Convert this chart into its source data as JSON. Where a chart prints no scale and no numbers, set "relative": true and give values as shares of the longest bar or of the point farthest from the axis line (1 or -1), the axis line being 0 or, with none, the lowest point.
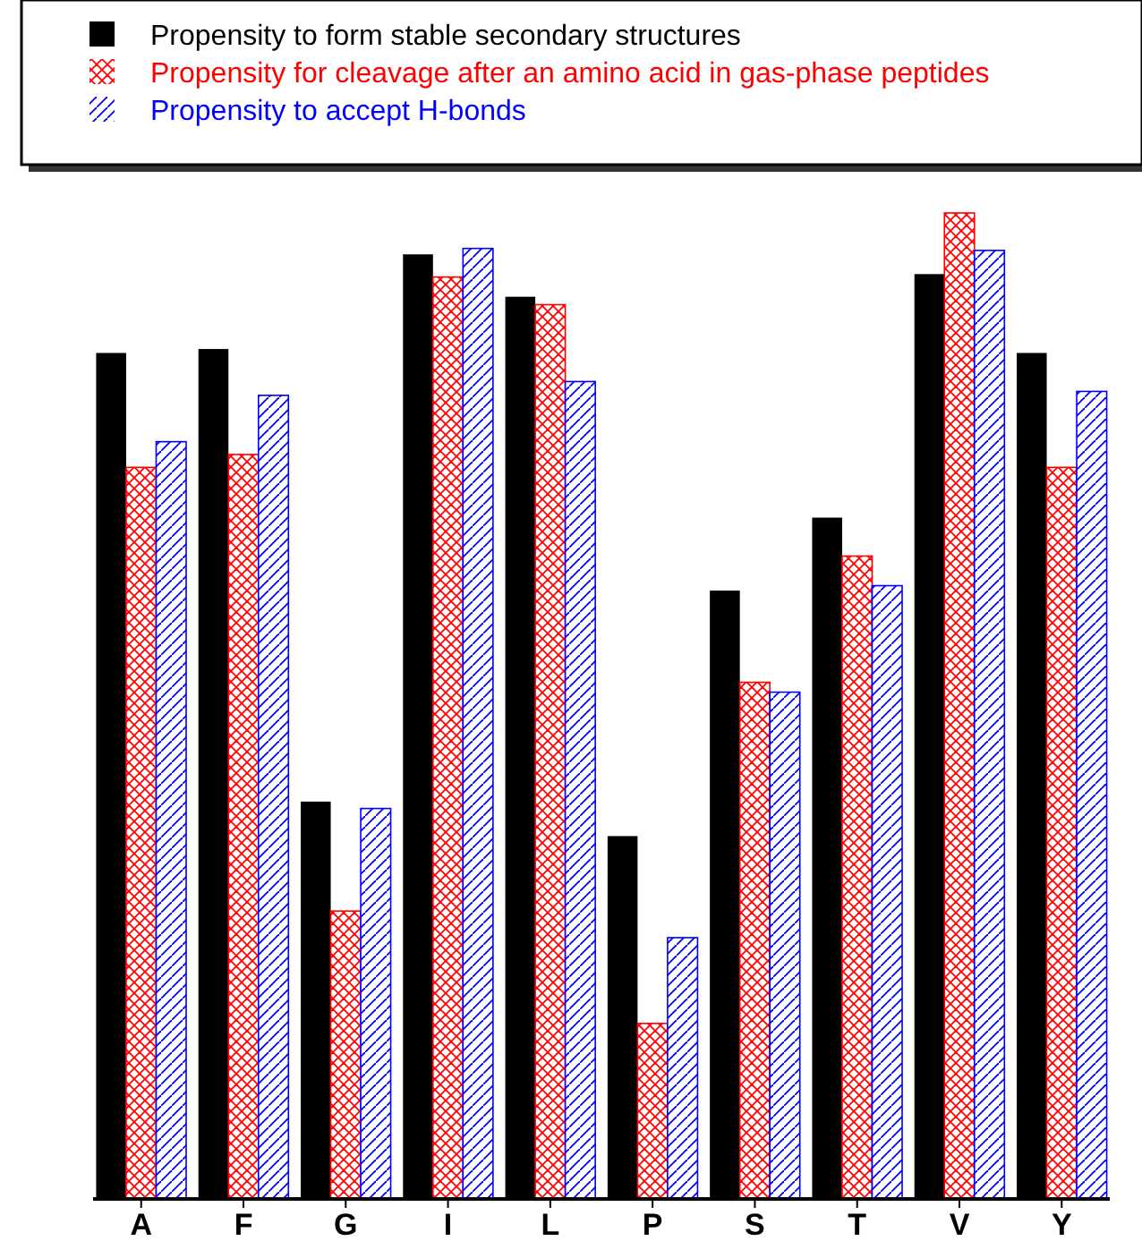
{
  "chart_data": {
    "type": "bar",
    "relative": true,
    "legend": "top",
    "categories": [
      "A",
      "F",
      "G",
      "I",
      "L",
      "P",
      "S",
      "T",
      "V",
      "Y"
    ],
    "series": [
      {
        "name": "Propensity to form stable secondary structures",
        "color": "#000000",
        "values": [
          0.858,
          0.862,
          0.403,
          0.958,
          0.915,
          0.368,
          0.617,
          0.691,
          0.938,
          0.858
        ]
      },
      {
        "name": "Propensity for cleavage after an amino acid in gas-phase peptides",
        "color": "#ff0000",
        "values": [
          0.742,
          0.755,
          0.292,
          0.935,
          0.907,
          0.178,
          0.524,
          0.652,
          1,
          0.742
        ]
      },
      {
        "name": "Propensity to accept H-bonds",
        "color": "#0000ff",
        "values": [
          0.768,
          0.815,
          0.396,
          0.964,
          0.829,
          0.265,
          0.514,
          0.622,
          0.962,
          0.819
        ]
      }
    ]
  }
}
